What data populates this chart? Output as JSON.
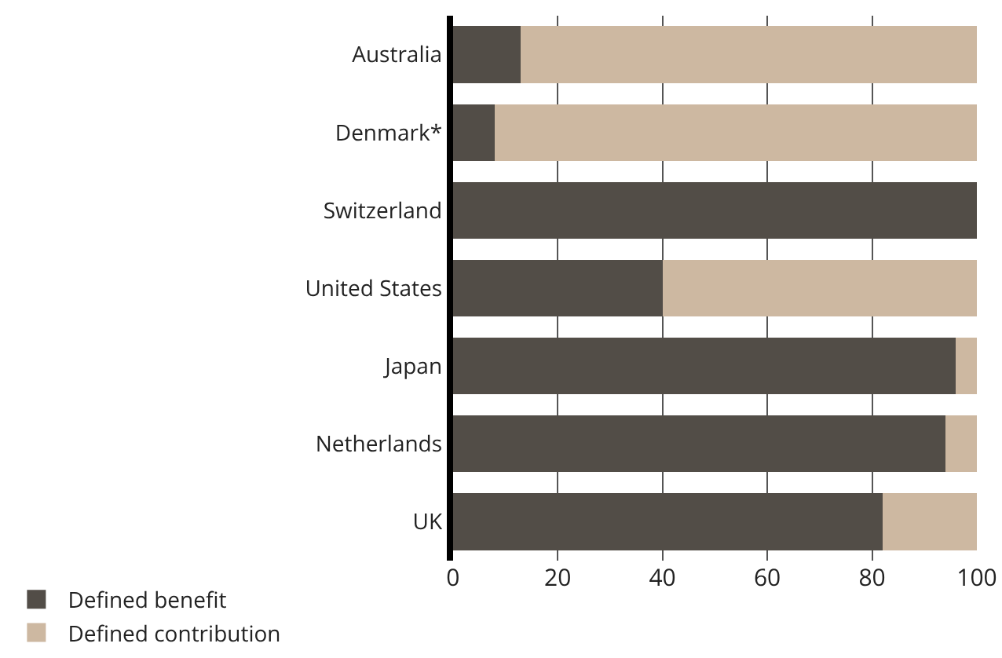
{
  "chart_data": {
    "type": "bar",
    "orientation": "horizontal",
    "stacked": true,
    "categories": [
      "Australia",
      "Denmark*",
      "Switzerland",
      "United States",
      "Japan",
      "Netherlands",
      "UK"
    ],
    "series": [
      {
        "name": "Defined benefit",
        "color": "#524d47",
        "values": [
          13,
          8,
          100,
          40,
          96,
          94,
          82
        ]
      },
      {
        "name": "Defined contribution",
        "color": "#cdb8a1",
        "values": [
          87,
          92,
          0,
          60,
          4,
          6,
          18
        ]
      }
    ],
    "xlim": [
      0,
      100
    ],
    "xticks": [
      0,
      20,
      40,
      60,
      80,
      100
    ],
    "grid": "x",
    "legend": "bottom left"
  }
}
